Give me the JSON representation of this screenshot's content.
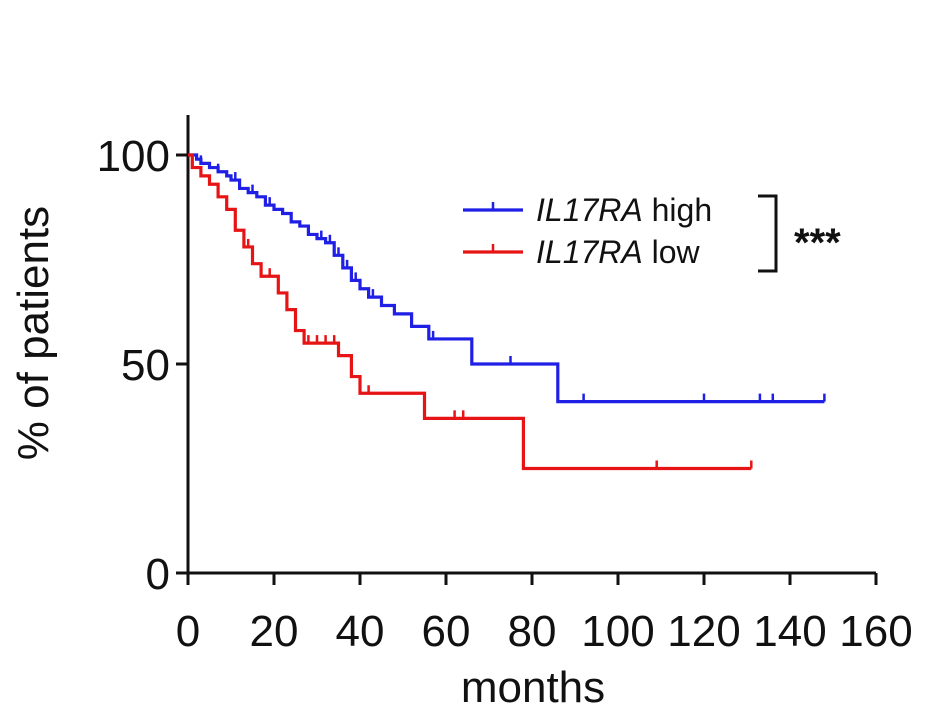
{
  "chart_data": {
    "type": "line",
    "subtype": "kaplan-meier-survival",
    "xlabel": "months",
    "ylabel": "% of patients",
    "xlim": [
      0,
      160
    ],
    "ylim": [
      0,
      100
    ],
    "xticks": [
      "0",
      "20",
      "40",
      "60",
      "80",
      "100",
      "120",
      "140",
      "160"
    ],
    "yticks": [
      "0",
      "50",
      "100"
    ],
    "grid": false,
    "legend_position": "top-right",
    "significance": "***",
    "series": [
      {
        "name_gene": "IL17RA",
        "name_suffix": " high",
        "color": "#1f1fe6",
        "steps": [
          [
            0,
            100
          ],
          [
            2,
            99
          ],
          [
            3,
            98
          ],
          [
            5,
            97
          ],
          [
            7,
            96
          ],
          [
            9,
            95
          ],
          [
            10,
            94
          ],
          [
            12,
            92
          ],
          [
            14,
            91
          ],
          [
            16,
            90
          ],
          [
            18,
            88
          ],
          [
            20,
            87
          ],
          [
            22,
            86
          ],
          [
            24,
            84
          ],
          [
            26,
            83
          ],
          [
            28,
            81
          ],
          [
            30,
            80
          ],
          [
            32,
            79
          ],
          [
            34,
            76
          ],
          [
            36,
            73
          ],
          [
            38,
            70
          ],
          [
            40,
            68
          ],
          [
            42,
            66
          ],
          [
            45,
            64
          ],
          [
            48,
            62
          ],
          [
            52,
            59
          ],
          [
            56,
            56
          ],
          [
            66,
            50
          ],
          [
            86,
            41
          ],
          [
            148,
            41
          ]
        ],
        "censored": [
          3,
          7,
          11,
          15,
          19,
          24,
          28,
          31,
          33,
          35,
          37,
          39,
          43,
          57,
          75,
          92,
          120,
          133,
          136,
          148
        ]
      },
      {
        "name_gene": "IL17RA",
        "name_suffix": " low",
        "color": "#e61414",
        "steps": [
          [
            0,
            100
          ],
          [
            1,
            97
          ],
          [
            3,
            95
          ],
          [
            5,
            93
          ],
          [
            7,
            90
          ],
          [
            9,
            87
          ],
          [
            11,
            82
          ],
          [
            13,
            78
          ],
          [
            15,
            74
          ],
          [
            17,
            71
          ],
          [
            21,
            67
          ],
          [
            23,
            63
          ],
          [
            25,
            58
          ],
          [
            27,
            55
          ],
          [
            35,
            52
          ],
          [
            38,
            47
          ],
          [
            40,
            43
          ],
          [
            55,
            37
          ],
          [
            78,
            25
          ],
          [
            131,
            25
          ]
        ],
        "censored": [
          14,
          19,
          28,
          30,
          32,
          34,
          42,
          62,
          64,
          78,
          109,
          131
        ]
      }
    ]
  }
}
